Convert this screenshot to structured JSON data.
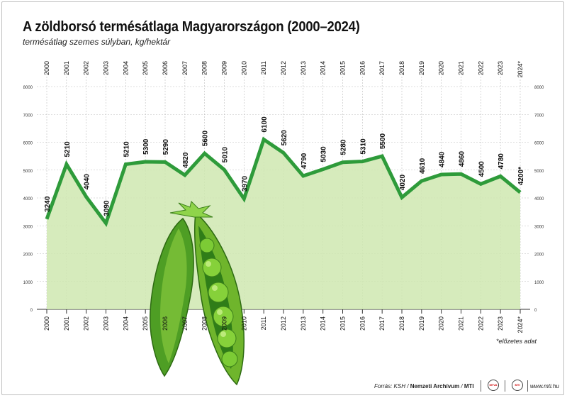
{
  "header": {
    "title": "A zöldborsó termésátlaga Magyarországon (2000–2024)",
    "subtitle": "termésátlag szemes súlyban, kg/hektár"
  },
  "footnote": "*előzetes adat",
  "footer": {
    "source_prefix": "Forrás: KSH / ",
    "source_archive": "Nemzeti Archívum",
    "source_sep": " / ",
    "source_mti": "MTI",
    "site": "www.mti.hu",
    "logo_1": "MTVA",
    "logo_2": "MTI"
  },
  "colors": {
    "line": "#2e9b3a",
    "area": "#cfe8b0",
    "grid": "#bdbdbd",
    "pea_dark": "#3f8a1f",
    "pea_light": "#8ccf3c"
  },
  "icons": [
    "pea-pod-illustration"
  ],
  "chart_data": {
    "type": "line",
    "title": "A zöldborsó termésátlaga Magyarországon (2000–2024)",
    "ylabel": "termésátlag szemes súlyban, kg/hektár",
    "categories": [
      "2000",
      "2001",
      "2002",
      "2003",
      "2004",
      "2005",
      "2006",
      "2007",
      "2008",
      "2009",
      "2010",
      "2011",
      "2012",
      "2013",
      "2014",
      "2015",
      "2016",
      "2017",
      "2018",
      "2019",
      "2020",
      "2021",
      "2022",
      "2023",
      "2024*"
    ],
    "values": [
      3240,
      5210,
      4040,
      3090,
      5210,
      5300,
      5290,
      4820,
      5600,
      5010,
      3970,
      6100,
      5620,
      4790,
      5030,
      5280,
      5310,
      5500,
      4020,
      4610,
      4840,
      4860,
      4500,
      4780,
      4200
    ],
    "labels": [
      "3240",
      "5210",
      "4040",
      "3090",
      "5210",
      "5300",
      "5290",
      "4820",
      "5600",
      "5010",
      "3970",
      "6100",
      "5620",
      "4790",
      "5030",
      "5280",
      "5310",
      "5500",
      "4020",
      "4610",
      "4840",
      "4860",
      "4500",
      "4780",
      "4200*"
    ],
    "y_ticks": [
      "0",
      "1000",
      "2000",
      "3000",
      "4000",
      "5000",
      "6000",
      "7000",
      "8000"
    ],
    "ylim": [
      0,
      8000
    ],
    "grid": true,
    "area_fill": true
  }
}
